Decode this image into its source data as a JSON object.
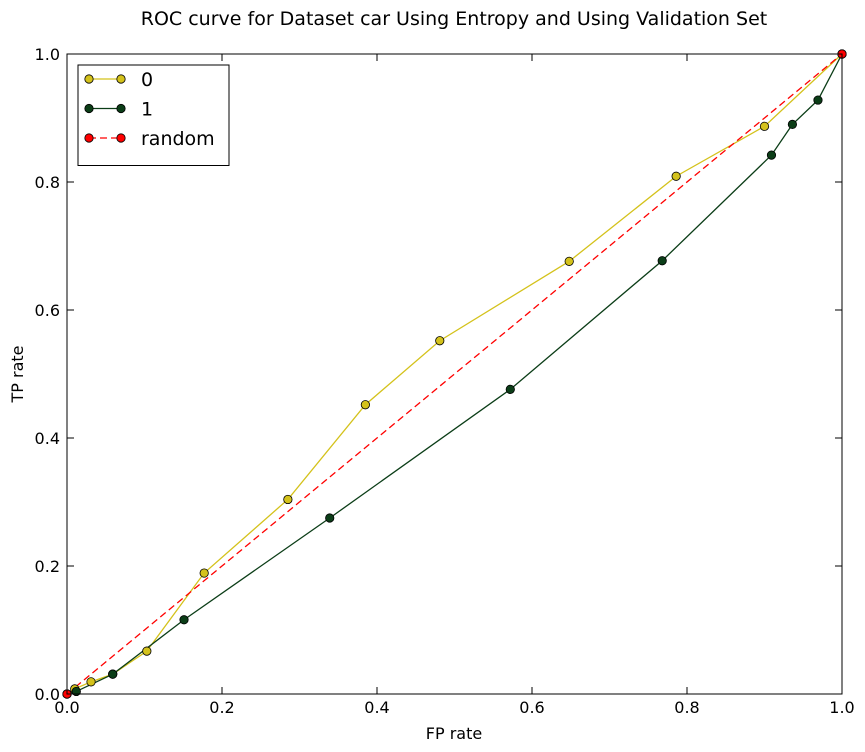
{
  "chart_data": {
    "type": "line",
    "title": "ROC curve for Dataset car Using Entropy and Using Validation Set",
    "xlabel": "FP rate",
    "ylabel": "TP rate",
    "xlim": [
      0.0,
      1.0
    ],
    "ylim": [
      0.0,
      1.0
    ],
    "xticks": [
      "0.0",
      "0.2",
      "0.4",
      "0.6",
      "0.8",
      "1.0"
    ],
    "yticks": [
      "0.0",
      "0.2",
      "0.4",
      "0.6",
      "0.8",
      "1.0"
    ],
    "grid": false,
    "legend_position": "top-left",
    "series": [
      {
        "name": "0",
        "color": "#d4c21b",
        "line_style": "solid",
        "marker": "circle",
        "x": [
          0.0,
          0.01,
          0.031,
          0.059,
          0.103,
          0.177,
          0.285,
          0.385,
          0.481,
          0.648,
          0.786,
          0.9,
          1.0
        ],
        "y": [
          0.0,
          0.008,
          0.019,
          0.031,
          0.067,
          0.189,
          0.304,
          0.452,
          0.552,
          0.676,
          0.809,
          0.887,
          1.0
        ]
      },
      {
        "name": "1",
        "color": "#0b3d17",
        "line_style": "solid",
        "marker": "circle",
        "x": [
          0.0,
          0.012,
          0.059,
          0.151,
          0.339,
          0.572,
          0.768,
          0.909,
          0.936,
          0.969,
          1.0
        ],
        "y": [
          0.0,
          0.004,
          0.031,
          0.116,
          0.275,
          0.476,
          0.677,
          0.842,
          0.89,
          0.928,
          1.0
        ]
      },
      {
        "name": "random",
        "color": "#ff0000",
        "line_style": "dashed",
        "marker": "circle",
        "x": [
          0.0,
          1.0
        ],
        "y": [
          0.0,
          1.0
        ]
      }
    ]
  }
}
